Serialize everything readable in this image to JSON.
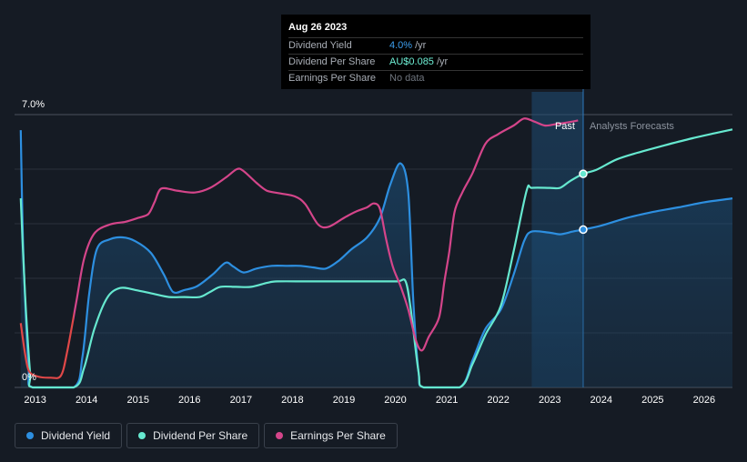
{
  "chart_data": {
    "type": "line",
    "title": "",
    "y_axis": {
      "top_label": "7.0%",
      "bottom_label": "0%",
      "ylim": [
        0,
        7.0
      ]
    },
    "x_axis": {
      "ticks": [
        "2013",
        "2014",
        "2015",
        "2016",
        "2017",
        "2018",
        "2019",
        "2020",
        "2021",
        "2022",
        "2023",
        "2024",
        "2025",
        "2026"
      ],
      "xlim": [
        2012.6,
        2026.55
      ]
    },
    "regions": {
      "past_label": "Past",
      "forecast_label": "Analysts Forecasts",
      "past_start": 2022.65,
      "divider": 2023.65
    },
    "series": [
      {
        "name": "Dividend Yield",
        "color": "#2d8fe0",
        "fill": true,
        "points": [
          [
            2012.72,
            6.6
          ],
          [
            2012.77,
            3.5
          ],
          [
            2012.87,
            0.6
          ],
          [
            2012.95,
            0
          ],
          [
            2013.75,
            0
          ],
          [
            2013.92,
            0.8
          ],
          [
            2014.05,
            2.4
          ],
          [
            2014.2,
            3.55
          ],
          [
            2014.45,
            3.8
          ],
          [
            2014.7,
            3.85
          ],
          [
            2014.95,
            3.75
          ],
          [
            2015.25,
            3.45
          ],
          [
            2015.5,
            2.9
          ],
          [
            2015.68,
            2.45
          ],
          [
            2015.9,
            2.5
          ],
          [
            2016.15,
            2.6
          ],
          [
            2016.45,
            2.9
          ],
          [
            2016.7,
            3.2
          ],
          [
            2016.85,
            3.1
          ],
          [
            2017.05,
            2.95
          ],
          [
            2017.3,
            3.05
          ],
          [
            2017.6,
            3.12
          ],
          [
            2017.9,
            3.12
          ],
          [
            2018.15,
            3.12
          ],
          [
            2018.4,
            3.08
          ],
          [
            2018.65,
            3.05
          ],
          [
            2018.9,
            3.25
          ],
          [
            2019.15,
            3.55
          ],
          [
            2019.45,
            3.85
          ],
          [
            2019.7,
            4.35
          ],
          [
            2019.9,
            5.2
          ],
          [
            2020.1,
            5.75
          ],
          [
            2020.25,
            5.0
          ],
          [
            2020.35,
            2.2
          ],
          [
            2020.45,
            0.4
          ],
          [
            2020.55,
            0
          ],
          [
            2021.25,
            0
          ],
          [
            2021.5,
            0.7
          ],
          [
            2021.75,
            1.5
          ],
          [
            2022.05,
            2.0
          ],
          [
            2022.3,
            2.9
          ],
          [
            2022.5,
            3.75
          ],
          [
            2022.65,
            4.0
          ],
          [
            2023.0,
            3.97
          ],
          [
            2023.2,
            3.93
          ],
          [
            2023.45,
            4.0
          ],
          [
            2023.65,
            4.05
          ],
          [
            2024.0,
            4.15
          ],
          [
            2024.5,
            4.35
          ],
          [
            2025.0,
            4.5
          ],
          [
            2025.5,
            4.62
          ],
          [
            2026.0,
            4.75
          ],
          [
            2026.55,
            4.85
          ]
        ]
      },
      {
        "name": "Dividend Per Share",
        "color": "#66e8cf",
        "fill": false,
        "points": [
          [
            2012.72,
            4.85
          ],
          [
            2012.8,
            2.5
          ],
          [
            2012.9,
            0.4
          ],
          [
            2012.95,
            0
          ],
          [
            2013.75,
            0
          ],
          [
            2013.95,
            0.5
          ],
          [
            2014.15,
            1.5
          ],
          [
            2014.4,
            2.3
          ],
          [
            2014.65,
            2.55
          ],
          [
            2014.95,
            2.5
          ],
          [
            2015.3,
            2.4
          ],
          [
            2015.6,
            2.32
          ],
          [
            2015.9,
            2.32
          ],
          [
            2016.2,
            2.32
          ],
          [
            2016.4,
            2.45
          ],
          [
            2016.6,
            2.58
          ],
          [
            2016.9,
            2.58
          ],
          [
            2017.2,
            2.58
          ],
          [
            2017.5,
            2.68
          ],
          [
            2017.7,
            2.72
          ],
          [
            2018.3,
            2.72
          ],
          [
            2019.0,
            2.72
          ],
          [
            2019.7,
            2.72
          ],
          [
            2020.05,
            2.72
          ],
          [
            2020.2,
            2.72
          ],
          [
            2020.3,
            2.0
          ],
          [
            2020.45,
            0.4
          ],
          [
            2020.55,
            0
          ],
          [
            2021.25,
            0
          ],
          [
            2021.5,
            0.6
          ],
          [
            2021.75,
            1.35
          ],
          [
            2022.05,
            2.1
          ],
          [
            2022.3,
            3.5
          ],
          [
            2022.55,
            5.05
          ],
          [
            2022.65,
            5.12
          ],
          [
            2023.0,
            5.12
          ],
          [
            2023.2,
            5.12
          ],
          [
            2023.4,
            5.3
          ],
          [
            2023.65,
            5.48
          ],
          [
            2023.9,
            5.58
          ],
          [
            2024.3,
            5.85
          ],
          [
            2024.7,
            6.02
          ],
          [
            2025.2,
            6.2
          ],
          [
            2025.7,
            6.37
          ],
          [
            2026.2,
            6.52
          ],
          [
            2026.55,
            6.62
          ]
        ]
      },
      {
        "name": "Earnings Per Share",
        "color": "#d4458a",
        "fill": false,
        "points": [
          [
            2012.72,
            1.65
          ],
          [
            2012.8,
            0.9
          ],
          [
            2012.88,
            0.42
          ],
          [
            2013.05,
            0.28
          ],
          [
            2013.3,
            0.25
          ],
          [
            2013.5,
            0.3
          ],
          [
            2013.62,
            0.9
          ],
          [
            2013.8,
            2.2
          ],
          [
            2013.95,
            3.3
          ],
          [
            2014.15,
            3.95
          ],
          [
            2014.45,
            4.18
          ],
          [
            2014.75,
            4.25
          ],
          [
            2015.0,
            4.35
          ],
          [
            2015.2,
            4.45
          ],
          [
            2015.32,
            4.75
          ],
          [
            2015.45,
            5.1
          ],
          [
            2015.75,
            5.05
          ],
          [
            2016.1,
            5.0
          ],
          [
            2016.4,
            5.12
          ],
          [
            2016.7,
            5.38
          ],
          [
            2016.92,
            5.6
          ],
          [
            2017.05,
            5.55
          ],
          [
            2017.3,
            5.25
          ],
          [
            2017.5,
            5.05
          ],
          [
            2017.75,
            4.98
          ],
          [
            2018.05,
            4.9
          ],
          [
            2018.25,
            4.7
          ],
          [
            2018.5,
            4.18
          ],
          [
            2018.7,
            4.12
          ],
          [
            2019.0,
            4.35
          ],
          [
            2019.25,
            4.52
          ],
          [
            2019.45,
            4.62
          ],
          [
            2019.58,
            4.72
          ],
          [
            2019.7,
            4.58
          ],
          [
            2019.82,
            3.8
          ],
          [
            2019.95,
            3.1
          ],
          [
            2020.1,
            2.6
          ],
          [
            2020.25,
            2.0
          ],
          [
            2020.4,
            1.2
          ],
          [
            2020.52,
            0.95
          ],
          [
            2020.65,
            1.3
          ],
          [
            2020.85,
            1.8
          ],
          [
            2020.95,
            2.7
          ],
          [
            2021.05,
            3.5
          ],
          [
            2021.15,
            4.5
          ],
          [
            2021.3,
            5.0
          ],
          [
            2021.5,
            5.5
          ],
          [
            2021.75,
            6.25
          ],
          [
            2022.0,
            6.5
          ],
          [
            2022.3,
            6.72
          ],
          [
            2022.5,
            6.9
          ],
          [
            2022.7,
            6.82
          ],
          [
            2022.9,
            6.72
          ],
          [
            2023.1,
            6.75
          ],
          [
            2023.35,
            6.8
          ],
          [
            2023.55,
            6.85
          ]
        ]
      }
    ],
    "highlight_date": 2023.65
  },
  "tooltip": {
    "date": "Aug 26 2023",
    "rows": [
      {
        "label": "Dividend Yield",
        "value": "4.0%",
        "unit": "/yr"
      },
      {
        "label": "Dividend Per Share",
        "value": "AU$0.085",
        "unit": "/yr"
      },
      {
        "label": "Earnings Per Share",
        "value": "No data",
        "unit": ""
      }
    ]
  },
  "legend": [
    {
      "label": "Dividend Yield",
      "color": "#2d8fe0"
    },
    {
      "label": "Dividend Per Share",
      "color": "#66e8cf"
    },
    {
      "label": "Earnings Per Share",
      "color": "#d4458a"
    }
  ]
}
